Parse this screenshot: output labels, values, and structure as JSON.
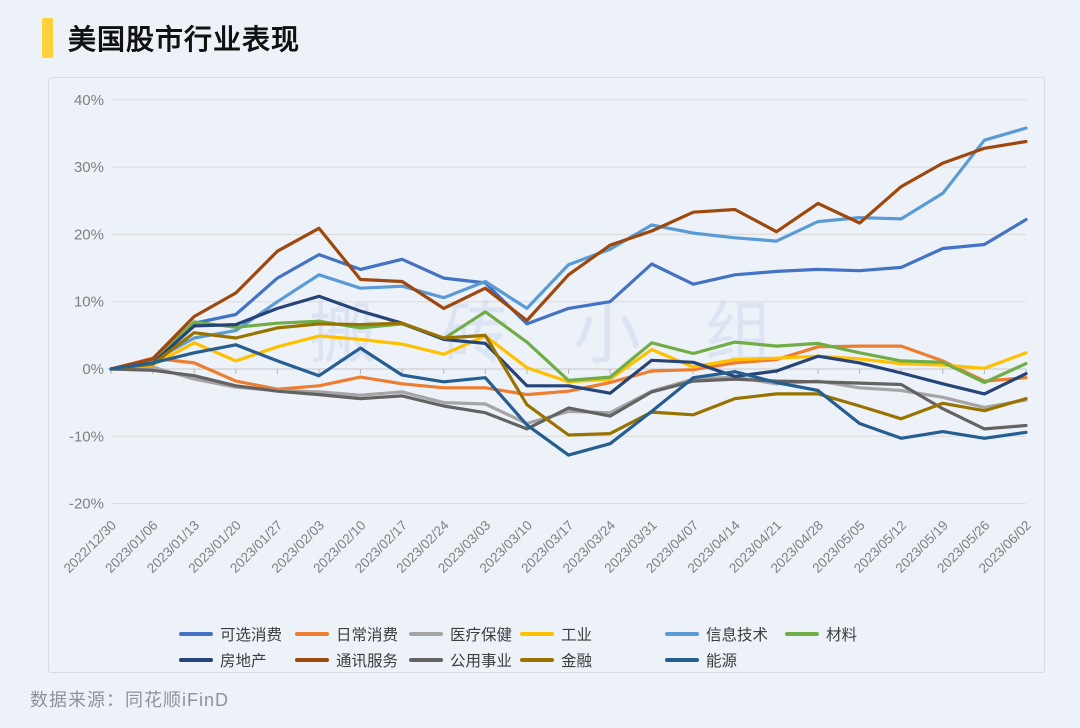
{
  "page": {
    "background": "#edf2f9"
  },
  "header": {
    "title": "美国股市行业表现",
    "accent_color": "#FFD23C"
  },
  "watermark": {
    "text": "搬砖小组"
  },
  "footer": {
    "source": "数据来源：同花顺iFinD"
  },
  "chart_data": {
    "type": "line",
    "title": "美国股市行业表现",
    "grid": true,
    "legend_position": "bottom-inside",
    "y_axis": {
      "unit": "%",
      "ylim": [
        -20,
        40
      ],
      "tick_values": [
        40,
        30,
        20,
        10,
        0,
        -10,
        -20
      ],
      "tick_labels": [
        "40%",
        "30%",
        "20%",
        "10%",
        "0%",
        "-10%",
        "-20%"
      ]
    },
    "x": [
      "2022/12/30",
      "2023/01/06",
      "2023/01/13",
      "2023/01/20",
      "2023/01/27",
      "2023/02/03",
      "2023/02/10",
      "2023/02/17",
      "2023/02/24",
      "2023/03/03",
      "2023/03/10",
      "2023/03/17",
      "2023/03/24",
      "2023/03/31",
      "2023/04/07",
      "2023/04/14",
      "2023/04/21",
      "2023/04/28",
      "2023/05/05",
      "2023/05/12",
      "2023/05/19",
      "2023/05/26",
      "2023/06/02"
    ],
    "series": [
      {
        "name": "可选消费",
        "color": "#4472C4",
        "values": [
          0,
          1.4,
          6.8,
          8.1,
          13.5,
          17.0,
          14.8,
          16.3,
          13.5,
          12.8,
          6.7,
          9.0,
          10.0,
          15.6,
          12.6,
          14.0,
          14.5,
          14.8,
          14.6,
          15.1,
          17.9,
          18.5,
          22.2
        ]
      },
      {
        "name": "日常消费",
        "color": "#ED7D31",
        "values": [
          0,
          1.6,
          0.9,
          -1.8,
          -3.0,
          -2.5,
          -1.2,
          -2.2,
          -2.8,
          -2.8,
          -3.8,
          -3.3,
          -2.0,
          -0.3,
          -0.1,
          0.9,
          1.4,
          3.3,
          3.4,
          3.4,
          1.2,
          -1.8,
          -1.3
        ]
      },
      {
        "name": "医疗保健",
        "color": "#A5A5A5",
        "values": [
          0,
          0.3,
          -1.5,
          -2.7,
          -3.2,
          -3.4,
          -3.9,
          -3.4,
          -5.0,
          -5.2,
          -8.1,
          -6.3,
          -6.5,
          -3.3,
          -1.5,
          -1.2,
          -2.2,
          -1.8,
          -2.8,
          -3.2,
          -4.2,
          -5.7,
          -4.6
        ]
      },
      {
        "name": "工业",
        "color": "#FFC000",
        "values": [
          0,
          0.6,
          3.9,
          1.2,
          3.3,
          4.9,
          4.4,
          3.7,
          2.2,
          4.9,
          0.2,
          -1.9,
          -1.5,
          2.9,
          0.3,
          1.4,
          1.6,
          1.9,
          1.5,
          0.8,
          0.6,
          0.1,
          2.4
        ]
      },
      {
        "name": "信息技术",
        "color": "#5B9BD5",
        "values": [
          0,
          1.2,
          4.6,
          5.7,
          10.0,
          14.0,
          12.0,
          12.3,
          10.6,
          13.0,
          9.0,
          15.5,
          17.8,
          21.4,
          20.2,
          19.5,
          19.0,
          21.9,
          22.5,
          22.3,
          26.1,
          34.0,
          35.8
        ]
      },
      {
        "name": "材料",
        "color": "#70AD47",
        "values": [
          0,
          1.1,
          7.0,
          6.2,
          6.8,
          7.1,
          6.1,
          6.7,
          4.5,
          8.5,
          4.0,
          -1.7,
          -1.2,
          3.9,
          2.3,
          4.0,
          3.4,
          3.8,
          2.4,
          1.2,
          1.0,
          -2.0,
          0.8
        ]
      },
      {
        "name": "房地产",
        "color": "#264478",
        "values": [
          0,
          0.8,
          6.4,
          6.6,
          9.0,
          10.8,
          8.6,
          6.8,
          4.4,
          3.8,
          -2.5,
          -2.5,
          -3.6,
          1.3,
          1.0,
          -1.1,
          -0.3,
          1.9,
          0.9,
          -0.6,
          -2.2,
          -3.7,
          -0.7
        ]
      },
      {
        "name": "通讯服务",
        "color": "#9E480E",
        "values": [
          0,
          1.5,
          7.8,
          11.3,
          17.5,
          20.9,
          13.3,
          13.0,
          9.0,
          12.0,
          7.2,
          14.0,
          18.4,
          20.5,
          23.3,
          23.7,
          20.4,
          24.6,
          21.7,
          27.1,
          30.6,
          32.8,
          33.8
        ]
      },
      {
        "name": "公用事业",
        "color": "#636363",
        "values": [
          0,
          -0.2,
          -1.0,
          -2.5,
          -3.3,
          -3.8,
          -4.4,
          -4.0,
          -5.5,
          -6.5,
          -8.9,
          -5.8,
          -7.0,
          -3.4,
          -1.8,
          -1.5,
          -1.8,
          -1.9,
          -2.1,
          -2.3,
          -5.9,
          -8.9,
          -8.4
        ]
      },
      {
        "name": "金融",
        "color": "#997300",
        "values": [
          0,
          0.7,
          5.4,
          4.6,
          6.1,
          6.7,
          6.6,
          6.8,
          4.6,
          5.0,
          -5.3,
          -9.8,
          -9.6,
          -6.4,
          -6.8,
          -4.4,
          -3.7,
          -3.7,
          -5.5,
          -7.4,
          -5.1,
          -6.2,
          -4.4
        ]
      },
      {
        "name": "能源",
        "color": "#255E91",
        "values": [
          0,
          0.9,
          2.4,
          3.6,
          1.2,
          -1.0,
          3.1,
          -0.9,
          -1.9,
          -1.3,
          -8.3,
          -12.8,
          -11.1,
          -6.3,
          -1.3,
          -0.4,
          -2.0,
          -3.2,
          -8.1,
          -10.3,
          -9.3,
          -10.3,
          -9.4
        ]
      }
    ]
  }
}
